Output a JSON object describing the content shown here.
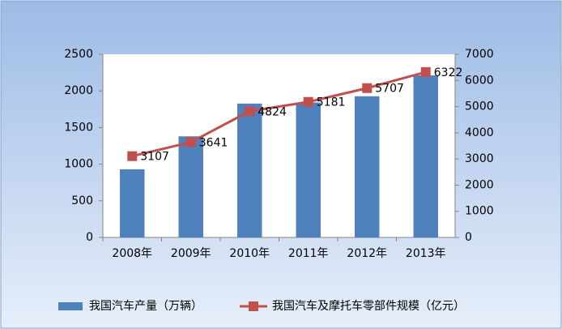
{
  "chart_data": {
    "type": "bar",
    "categories": [
      "2008年",
      "2009年",
      "2010年",
      "2011年",
      "2012年",
      "2013年"
    ],
    "series": [
      {
        "name": "我国汽车产量（万辆）",
        "type": "bar",
        "color": "#4f81bd",
        "values": [
          930,
          1380,
          1827,
          1842,
          1927,
          2212
        ]
      },
      {
        "name": "我国汽车及摩托车零部件规模（亿元）",
        "type": "line",
        "axis": "y2",
        "color": "#c0504d",
        "values": [
          3107,
          3641,
          4824,
          5181,
          5707,
          6322
        ]
      }
    ],
    "ylim": [
      0,
      2500
    ],
    "yticks": [
      0,
      500,
      1000,
      1500,
      2000,
      2500
    ],
    "y2lim": [
      0,
      7000
    ],
    "y2ticks": [
      0,
      1000,
      2000,
      3000,
      4000,
      5000,
      6000,
      7000
    ],
    "legend": "bottom"
  }
}
